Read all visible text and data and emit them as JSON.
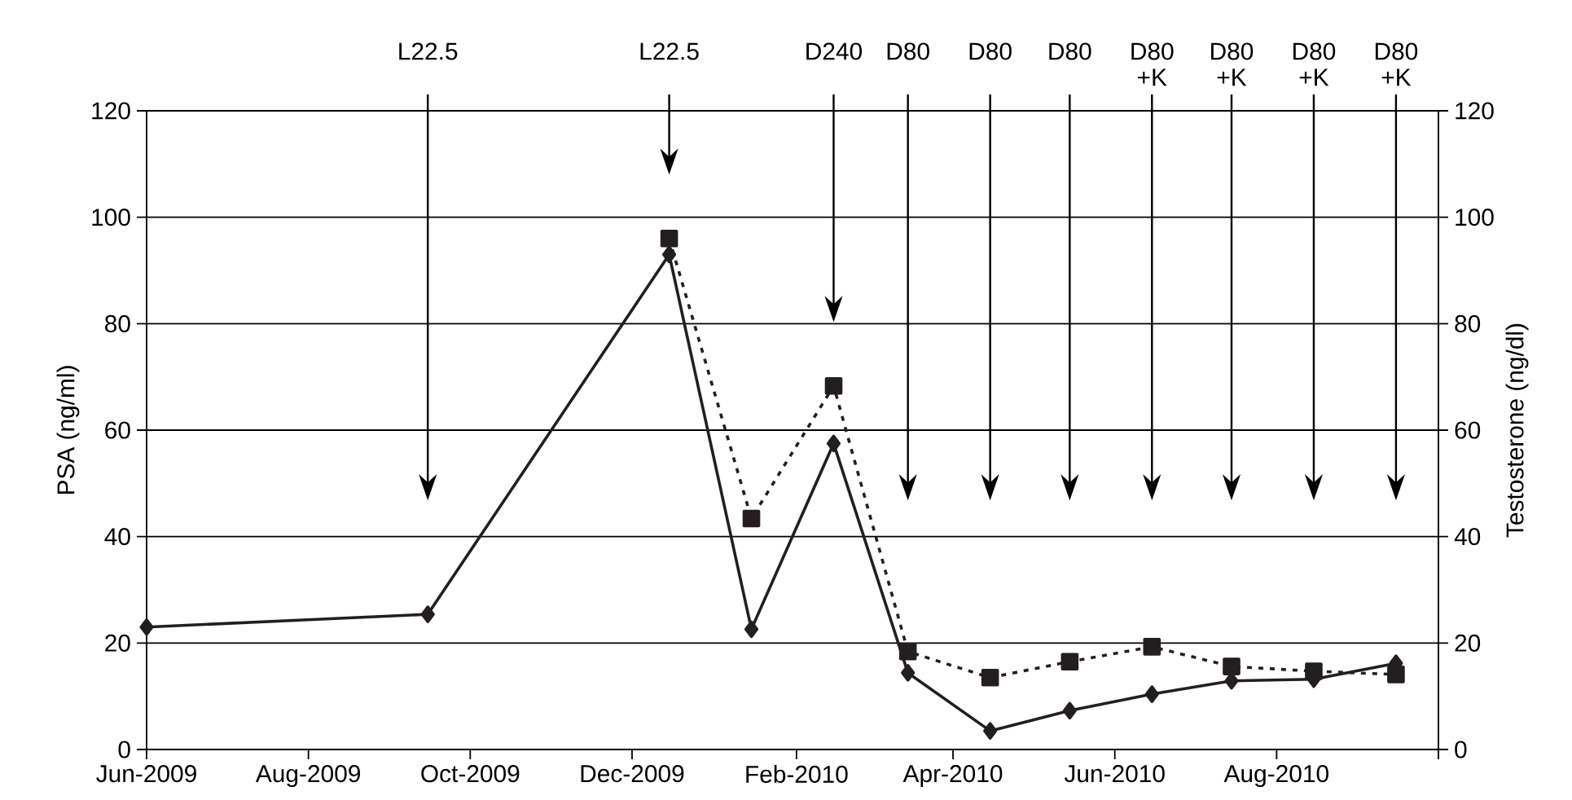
{
  "chart_data": {
    "type": "line",
    "ylabel": "PSA (ng/ml)",
    "y2label": "Testosterone (ng/dl)",
    "xlim": [
      "2009-06",
      "2010-10"
    ],
    "xticks": [
      {
        "value": "2009-06",
        "label": "Jun-2009"
      },
      {
        "value": "2009-08",
        "label": "Aug-2009"
      },
      {
        "value": "2009-10",
        "label": "Oct-2009"
      },
      {
        "value": "2009-12",
        "label": "Dec-2009"
      },
      {
        "value": "2010-02",
        "label": "Feb-2010"
      },
      {
        "value": "2010-04",
        "label": "Apr-2010"
      },
      {
        "value": "2010-06",
        "label": "Jun-2010"
      },
      {
        "value": "2010-08",
        "label": "Aug-2010"
      },
      {
        "value": "2010-10",
        "label": null
      }
    ],
    "ylim": [
      0,
      120
    ],
    "yticks": [
      0,
      20,
      40,
      60,
      80,
      100,
      120
    ],
    "y2lim": [
      0,
      120
    ],
    "y2ticks": [
      0,
      20,
      40,
      60,
      80,
      100,
      120
    ],
    "grid": "y",
    "series": [
      {
        "color": "#231f20",
        "axis": "y",
        "marker": "diamond",
        "line_style": "solid",
        "x": [
          "2009-06-01",
          "2009-09-15",
          "2009-12-15",
          "2010-01-15",
          "2010-02-15",
          "2010-03-15",
          "2010-04-15",
          "2010-05-15",
          "2010-06-15",
          "2010-07-15",
          "2010-08-15",
          "2010-09-15"
        ],
        "values": [
          23,
          25.4,
          93,
          22.6,
          57.5,
          14.4,
          3.5,
          7.3,
          10.4,
          12.9,
          13.2,
          16.2
        ]
      },
      {
        "color": "#231f20",
        "axis": "y2",
        "marker": "square",
        "line_style": "dotted",
        "x": [
          "2009-12-15",
          "2010-01-15",
          "2010-02-15",
          "2010-03-15",
          "2010-04-15",
          "2010-05-15",
          "2010-06-15",
          "2010-07-15",
          "2010-08-15",
          "2010-09-15"
        ],
        "values": [
          96,
          43.4,
          68.3,
          18.4,
          13.5,
          16.5,
          19.3,
          15.6,
          14.7,
          14.1
        ]
      }
    ],
    "ref_lines": [
      {
        "axis": "x",
        "value": "2009-09-15",
        "label": "L22.5"
      },
      {
        "axis": "x",
        "value": "2009-12-15",
        "label": "L22.5"
      },
      {
        "axis": "x",
        "value": "2010-02-15",
        "label": "D240"
      },
      {
        "axis": "x",
        "value": "2010-03-15",
        "label": "D80"
      },
      {
        "axis": "x",
        "value": "2010-04-15",
        "label": "D80"
      },
      {
        "axis": "x",
        "value": "2010-05-15",
        "label": "D80"
      },
      {
        "axis": "x",
        "value": "2010-06-15",
        "label": "D80 +K"
      },
      {
        "axis": "x",
        "value": "2010-07-15",
        "label": "D80 +K"
      },
      {
        "axis": "x",
        "value": "2010-08-15",
        "label": "D80 +K"
      },
      {
        "axis": "x",
        "value": "2010-09-15",
        "label": "D80 +K"
      }
    ]
  }
}
